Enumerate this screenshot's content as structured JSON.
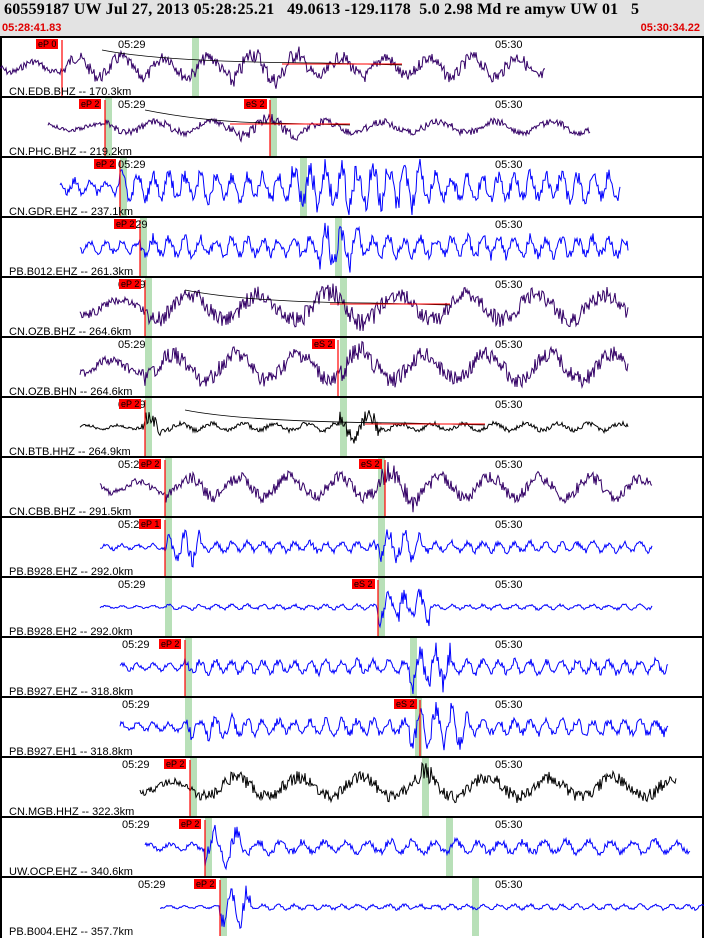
{
  "header": {
    "title": "60559187 UW Jul 27, 2013 05:28:25.21   49.0613 -129.1178  5.0 2.98 Md re amyw UW 01   5",
    "start_time": "05:28:41.83",
    "end_time": "05:30:34.22"
  },
  "minute_labels": [
    "05:29",
    "05:30"
  ],
  "colors": {
    "blue": "#0000ff",
    "purple": "#330066",
    "black": "#000000",
    "pick": "#ff0000",
    "window": "#b8e0b8"
  },
  "traces": [
    {
      "label": "CN.EDB.BHZ -- 170.3km",
      "color": "#330066",
      "p_pick": "eP 0",
      "s_pick": ""
    },
    {
      "label": "CN.PHC.BHZ -- 219.2km",
      "color": "#330066",
      "p_pick": "eP 2",
      "s_pick": "eS 2"
    },
    {
      "label": "CN.GDR.EHZ -- 237.1km",
      "color": "#0000ff",
      "p_pick": "eP 2",
      "s_pick": ""
    },
    {
      "label": "PB.B012.EHZ -- 261.3km",
      "color": "#0000ff",
      "p_pick": "eP 2",
      "s_pick": ""
    },
    {
      "label": "CN.OZB.BHZ -- 264.6km",
      "color": "#330066",
      "p_pick": "eP 2",
      "s_pick": ""
    },
    {
      "label": "CN.OZB.BHN -- 264.6km",
      "color": "#330066",
      "p_pick": "",
      "s_pick": "eS 2"
    },
    {
      "label": "CN.BTB.HHZ -- 264.9km",
      "color": "#000000",
      "p_pick": "eP 2",
      "s_pick": ""
    },
    {
      "label": "CN.CBB.BHZ -- 291.5km",
      "color": "#330066",
      "p_pick": "eP 2",
      "s_pick": "eS 2"
    },
    {
      "label": "PB.B928.EHZ -- 292.0km",
      "color": "#0000ff",
      "p_pick": "eP 1",
      "s_pick": ""
    },
    {
      "label": "PB.B928.EH2 -- 292.0km",
      "color": "#0000ff",
      "p_pick": "",
      "s_pick": "eS 2"
    },
    {
      "label": "PB.B927.EHZ -- 318.8km",
      "color": "#0000ff",
      "p_pick": "eP 2",
      "s_pick": ""
    },
    {
      "label": "PB.B927.EH1 -- 318.8km",
      "color": "#0000ff",
      "p_pick": "",
      "s_pick": "eS 2"
    },
    {
      "label": "CN.MGB.HHZ -- 322.3km",
      "color": "#000000",
      "p_pick": "eP 2",
      "s_pick": ""
    },
    {
      "label": "UW.OCP.EHZ -- 340.6km",
      "color": "#0000ff",
      "p_pick": "eP 2",
      "s_pick": ""
    },
    {
      "label": "PB.B004.EHZ -- 357.7km",
      "color": "#0000ff",
      "p_pick": "eP 2",
      "s_pick": ""
    }
  ]
}
